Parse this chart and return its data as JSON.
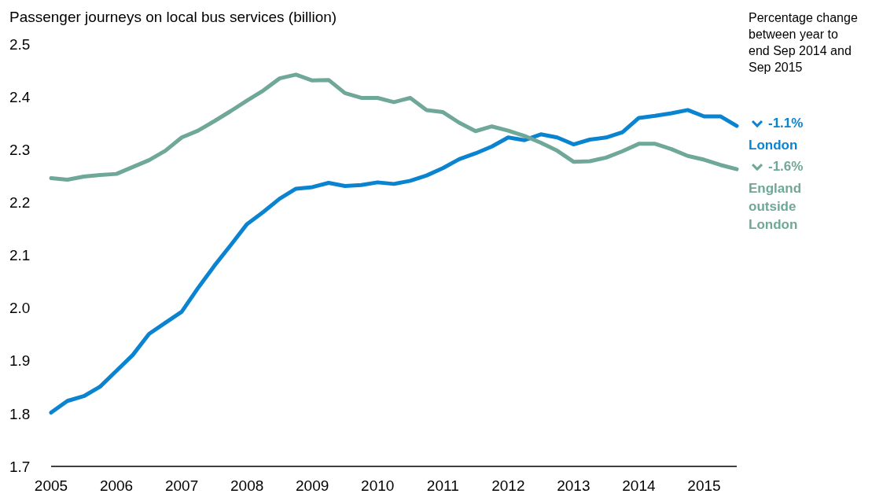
{
  "chart_data": {
    "type": "line",
    "title": "Passenger journeys on local bus services (billion)",
    "x": [
      2005,
      2005.25,
      2005.5,
      2005.75,
      2006,
      2006.25,
      2006.5,
      2006.75,
      2007,
      2007.25,
      2007.5,
      2007.75,
      2008,
      2008.25,
      2008.5,
      2008.75,
      2009,
      2009.25,
      2009.5,
      2009.75,
      2010,
      2010.25,
      2010.5,
      2010.75,
      2011,
      2011.25,
      2011.5,
      2011.75,
      2012,
      2012.25,
      2012.5,
      2012.75,
      2013,
      2013.25,
      2013.5,
      2013.75,
      2014,
      2014.25,
      2014.5,
      2014.75,
      2015,
      2015.25,
      2015.5
    ],
    "series": [
      {
        "name": "London",
        "color": "#0a84d0",
        "values": [
          1.802,
          1.824,
          1.833,
          1.851,
          1.881,
          1.911,
          1.951,
          1.972,
          1.993,
          2.038,
          2.08,
          2.119,
          2.159,
          2.182,
          2.207,
          2.226,
          2.229,
          2.237,
          2.231,
          2.233,
          2.238,
          2.235,
          2.241,
          2.251,
          2.265,
          2.282,
          2.293,
          2.306,
          2.323,
          2.318,
          2.329,
          2.323,
          2.31,
          2.319,
          2.323,
          2.333,
          2.36,
          2.364,
          2.369,
          2.375,
          2.363,
          2.363,
          2.345
        ]
      },
      {
        "name": "England outside London",
        "color": "#6fa898",
        "values": [
          2.246,
          2.243,
          2.249,
          2.252,
          2.254,
          2.267,
          2.28,
          2.298,
          2.323,
          2.336,
          2.354,
          2.373,
          2.393,
          2.412,
          2.435,
          2.442,
          2.431,
          2.432,
          2.407,
          2.398,
          2.398,
          2.39,
          2.398,
          2.375,
          2.371,
          2.351,
          2.335,
          2.344,
          2.336,
          2.326,
          2.313,
          2.298,
          2.277,
          2.278,
          2.285,
          2.297,
          2.311,
          2.311,
          2.301,
          2.288,
          2.281,
          2.271,
          2.263
        ]
      }
    ],
    "xlim": [
      2005,
      2015.5
    ],
    "xticks": [
      2005,
      2006,
      2007,
      2008,
      2009,
      2010,
      2011,
      2012,
      2013,
      2014,
      2015
    ],
    "ylim": [
      1.7,
      2.5
    ],
    "yticks": [
      {
        "value": 1.7,
        "label": "1.7"
      },
      {
        "value": 1.8,
        "label": "1.8"
      },
      {
        "value": 1.9,
        "label": "1.9"
      },
      {
        "value": 2.0,
        "label": "2.0"
      },
      {
        "value": 2.1,
        "label": "2.1"
      },
      {
        "value": 2.2,
        "label": "2.2"
      },
      {
        "value": 2.3,
        "label": "2.3"
      },
      {
        "value": 2.4,
        "label": "2.4"
      },
      {
        "value": 2.5,
        "label": "2.5"
      }
    ],
    "grid": false,
    "legend": "right",
    "marker": "none",
    "line_style": "solid",
    "annotations": [
      "Percentage change between year to end Sep 2014 and Sep 2015",
      {
        "text": "-1.1%",
        "x": 2015.5,
        "y": 2.345
      },
      {
        "text": "-1.6%",
        "x": 2015.5,
        "y": 2.263
      }
    ]
  }
}
